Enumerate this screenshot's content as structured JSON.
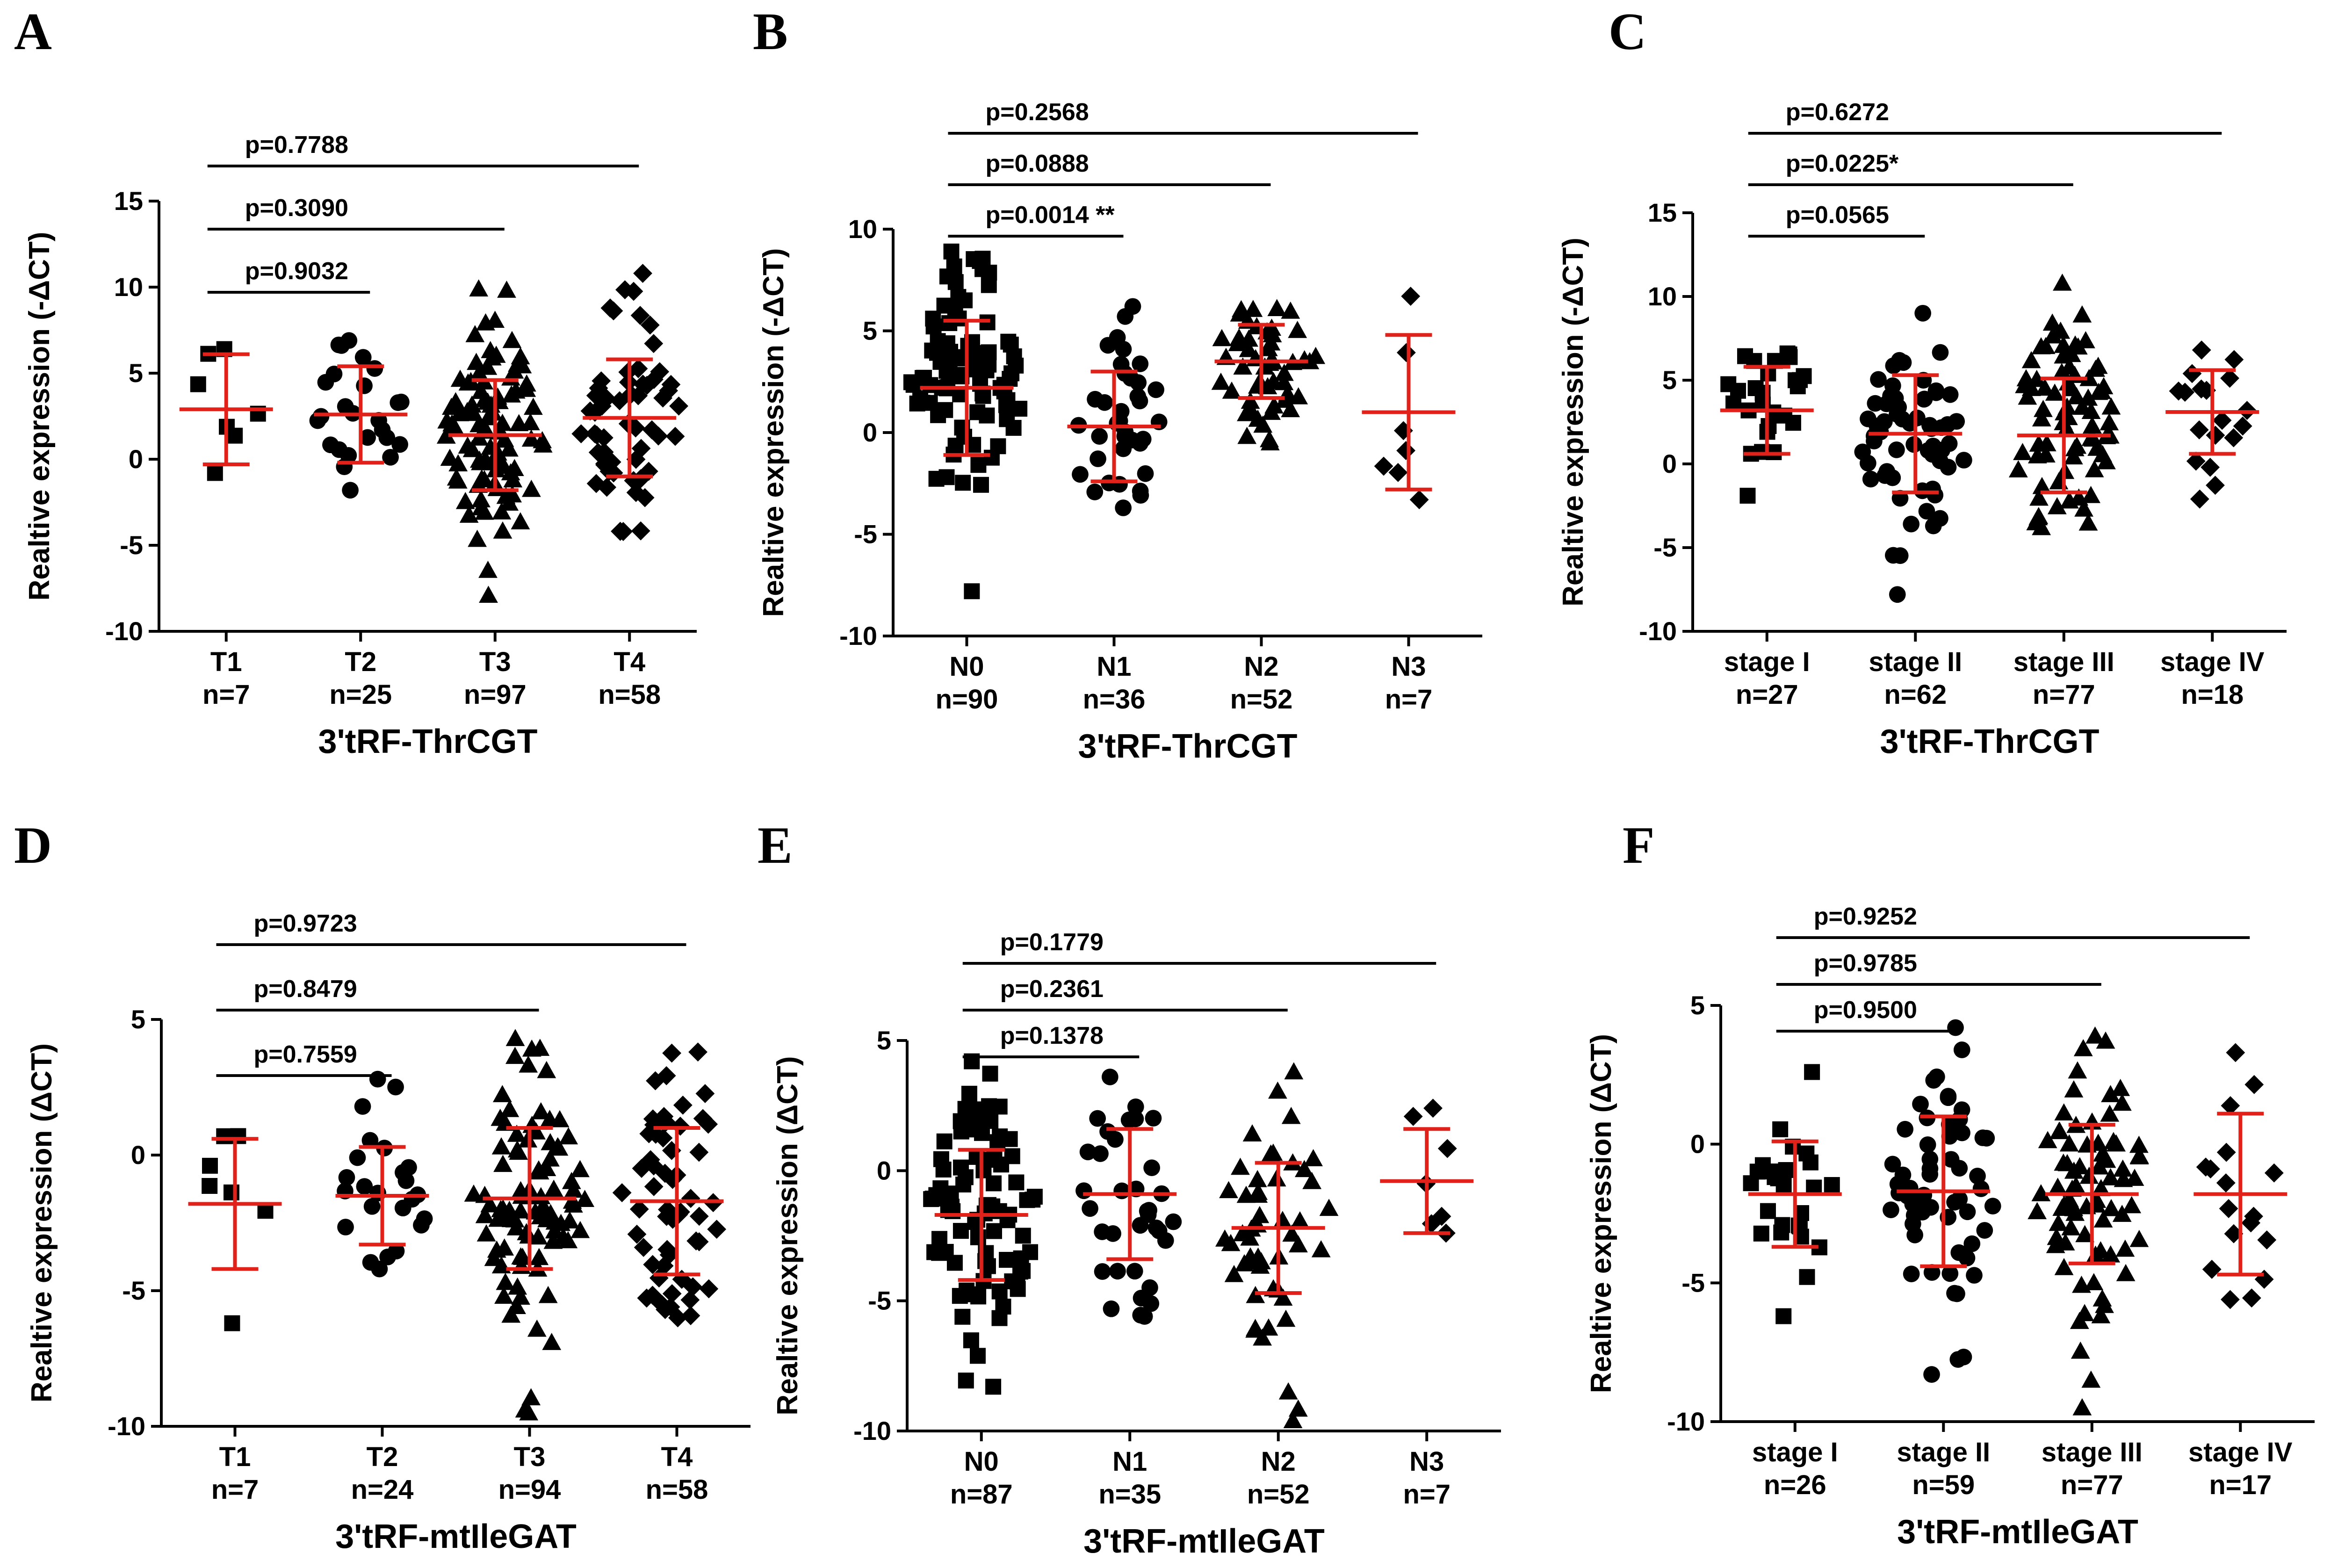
{
  "figure": {
    "description_colors": {
      "points": "#000000",
      "error_bars": "#e0221b",
      "axes": "#000000"
    }
  },
  "chart_data": [
    {
      "panel": "A",
      "type": "scatter",
      "title": "",
      "xlabel": "3'tRF-ThrCGT",
      "ylabel": "Realtive expression (-ΔCT)",
      "ylim": [
        -10,
        15
      ],
      "yticks": [
        "-10",
        "-5",
        "0",
        "5",
        "10",
        "15"
      ],
      "yticks_values": [
        -10,
        -5,
        0,
        5,
        10,
        15
      ],
      "categories": [
        "T1",
        "T2",
        "T3",
        "T4"
      ],
      "counts": [
        "n=7",
        "n=25",
        "n=97",
        "n=58"
      ],
      "n_values": [
        7,
        25,
        97,
        58
      ],
      "markers": [
        "square",
        "circle",
        "triangle",
        "diamond"
      ],
      "means": [
        2.9,
        2.6,
        1.4,
        2.4
      ],
      "sd": [
        3.2,
        2.8,
        3.2,
        3.4
      ],
      "ranges": [
        [
          -0.8,
          6.4
        ],
        [
          -1.8,
          6.9
        ],
        [
          -7.9,
          9.9
        ],
        [
          -4.2,
          10.8
        ]
      ],
      "comparisons": [
        {
          "label": "p=0.9032",
          "from": 0,
          "to": 1
        },
        {
          "label": "p=0.3090",
          "from": 0,
          "to": 2
        },
        {
          "label": "p=0.7788",
          "from": 0,
          "to": 3
        }
      ]
    },
    {
      "panel": "B",
      "type": "scatter",
      "title": "",
      "xlabel": "3'tRF-ThrCGT",
      "ylabel": "Realtive expression (-ΔCT)",
      "ylim": [
        -10,
        10
      ],
      "yticks": [
        "-10",
        "-5",
        "0",
        "5",
        "10"
      ],
      "yticks_values": [
        -10,
        -5,
        0,
        5,
        10
      ],
      "categories": [
        "N0",
        "N1",
        "N2",
        "N3"
      ],
      "counts": [
        "n=90",
        "n=36",
        "n=52",
        "n=7"
      ],
      "n_values": [
        90,
        36,
        52,
        7
      ],
      "markers": [
        "square",
        "circle",
        "triangle",
        "diamond"
      ],
      "means": [
        2.2,
        0.3,
        3.5,
        1.0
      ],
      "sd": [
        3.3,
        2.7,
        1.8,
        3.8
      ],
      "ranges": [
        [
          -7.8,
          8.9
        ],
        [
          -3.7,
          6.2
        ],
        [
          -0.5,
          6.1
        ],
        [
          -3.3,
          6.7
        ]
      ],
      "comparisons": [
        {
          "label": "p=0.0014 **",
          "from": 0,
          "to": 1
        },
        {
          "label": "p=0.0888",
          "from": 0,
          "to": 2
        },
        {
          "label": "p=0.2568",
          "from": 0,
          "to": 3
        }
      ]
    },
    {
      "panel": "C",
      "type": "scatter",
      "title": "",
      "xlabel": "3'tRF-ThrCGT",
      "ylabel": "Realtive expression (-ΔCT)",
      "ylim": [
        -10,
        15
      ],
      "yticks": [
        "-10",
        "-5",
        "0",
        "5",
        "10",
        "15"
      ],
      "yticks_values": [
        -10,
        -5,
        0,
        5,
        10,
        15
      ],
      "categories": [
        "stage I",
        "stage II",
        "stage III",
        "stage IV"
      ],
      "counts": [
        "n=27",
        "n=62",
        "n=77",
        "n=18"
      ],
      "n_values": [
        27,
        62,
        77,
        18
      ],
      "markers": [
        "square",
        "circle",
        "triangle",
        "diamond"
      ],
      "means": [
        3.2,
        1.8,
        1.7,
        3.1
      ],
      "sd": [
        2.6,
        3.5,
        3.4,
        2.5
      ],
      "ranges": [
        [
          -1.9,
          6.6
        ],
        [
          -7.8,
          9.0
        ],
        [
          -3.8,
          10.8
        ],
        [
          -2.1,
          6.8
        ]
      ],
      "comparisons": [
        {
          "label": "p=0.0565",
          "from": 0,
          "to": 1
        },
        {
          "label": "p=0.0225*",
          "from": 0,
          "to": 2
        },
        {
          "label": "p=0.6272",
          "from": 0,
          "to": 3
        }
      ]
    },
    {
      "panel": "D",
      "type": "scatter",
      "title": "",
      "xlabel": "3'tRF-mtIleGAT",
      "ylabel": "Realtive expression (ΔCT)",
      "ylim": [
        -10,
        5
      ],
      "yticks": [
        "-10",
        "-5",
        "0",
        "5"
      ],
      "yticks_values": [
        -10,
        -5,
        0,
        5
      ],
      "categories": [
        "T1",
        "T2",
        "T3",
        "T4"
      ],
      "counts": [
        "n=7",
        "n=24",
        "n=94",
        "n=58"
      ],
      "n_values": [
        7,
        24,
        94,
        58
      ],
      "markers": [
        "square",
        "circle",
        "triangle",
        "diamond"
      ],
      "means": [
        -1.8,
        -1.5,
        -1.6,
        -1.7
      ],
      "sd": [
        2.4,
        1.8,
        2.6,
        2.7
      ],
      "ranges": [
        [
          -6.2,
          0.7
        ],
        [
          -4.2,
          2.8
        ],
        [
          -9.5,
          4.3
        ],
        [
          -6.0,
          3.8
        ]
      ],
      "comparisons": [
        {
          "label": "p=0.7559",
          "from": 0,
          "to": 1
        },
        {
          "label": "p=0.8479",
          "from": 0,
          "to": 2
        },
        {
          "label": "p=0.9723",
          "from": 0,
          "to": 3
        }
      ]
    },
    {
      "panel": "E",
      "type": "scatter",
      "title": "",
      "xlabel": "3'tRF-mtIleGAT",
      "ylabel": "Realtive expression (ΔCT)",
      "ylim": [
        -10,
        5
      ],
      "yticks": [
        "-10",
        "-5",
        "0",
        "5"
      ],
      "yticks_values": [
        -10,
        -5,
        0,
        5
      ],
      "categories": [
        "N0",
        "N1",
        "N2",
        "N3"
      ],
      "counts": [
        "n=87",
        "n=35",
        "n=52",
        "n=7"
      ],
      "n_values": [
        87,
        35,
        52,
        7
      ],
      "markers": [
        "square",
        "circle",
        "triangle",
        "diamond"
      ],
      "means": [
        -1.7,
        -0.9,
        -2.2,
        -0.4
      ],
      "sd": [
        2.5,
        2.5,
        2.5,
        2.0
      ],
      "ranges": [
        [
          -8.3,
          4.2
        ],
        [
          -5.6,
          3.6
        ],
        [
          -9.6,
          3.8
        ],
        [
          -2.4,
          2.4
        ]
      ],
      "comparisons": [
        {
          "label": "p=0.1378",
          "from": 0,
          "to": 1
        },
        {
          "label": "p=0.2361",
          "from": 0,
          "to": 2
        },
        {
          "label": "p=0.1779",
          "from": 0,
          "to": 3
        }
      ]
    },
    {
      "panel": "F",
      "type": "scatter",
      "title": "",
      "xlabel": "3'tRF-mtIleGAT",
      "ylabel": "Realtive expression (ΔCT)",
      "ylim": [
        -10,
        5
      ],
      "yticks": [
        "-10",
        "-5",
        "0",
        "5"
      ],
      "yticks_values": [
        -10,
        -5,
        0,
        5
      ],
      "categories": [
        "stage I",
        "stage II",
        "stage III",
        "stage IV"
      ],
      "counts": [
        "n=26",
        "n=59",
        "n=77",
        "n=17"
      ],
      "n_values": [
        26,
        59,
        77,
        17
      ],
      "markers": [
        "square",
        "circle",
        "triangle",
        "diamond"
      ],
      "means": [
        -1.8,
        -1.7,
        -1.8,
        -1.8
      ],
      "sd": [
        1.9,
        2.7,
        2.5,
        2.9
      ],
      "ranges": [
        [
          -6.2,
          2.6
        ],
        [
          -8.3,
          4.2
        ],
        [
          -9.5,
          3.9
        ],
        [
          -5.6,
          3.3
        ]
      ],
      "comparisons": [
        {
          "label": "p=0.9500",
          "from": 0,
          "to": 1
        },
        {
          "label": "p=0.9785",
          "from": 0,
          "to": 2
        },
        {
          "label": "p=0.9252",
          "from": 0,
          "to": 3
        }
      ]
    }
  ]
}
